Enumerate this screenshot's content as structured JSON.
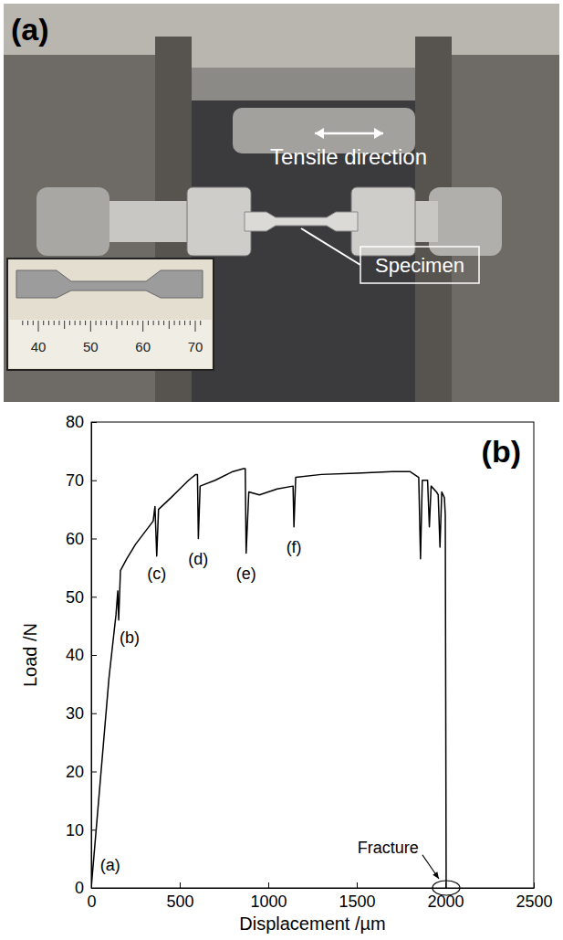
{
  "photo": {
    "title": "(a)",
    "labels": [
      "Tensile direction",
      "Specimen"
    ],
    "ruler_ticks": [
      40,
      50,
      60,
      70
    ]
  },
  "chart_data": {
    "type": "line",
    "title": "(b)",
    "x_label": "Displacement /µm",
    "y_label": "Load /N",
    "x": [
      0,
      50,
      100,
      140,
      150,
      155,
      165,
      200,
      250,
      300,
      350,
      360,
      370,
      380,
      450,
      500,
      550,
      590,
      600,
      605,
      615,
      700,
      800,
      860,
      870,
      875,
      890,
      950,
      1050,
      1140,
      1145,
      1155,
      1300,
      1500,
      1700,
      1800,
      1850,
      1860,
      1870,
      1900,
      1910,
      1920,
      1950,
      1960,
      1970,
      1980,
      1995,
      2000,
      2005
    ],
    "values": [
      0,
      18,
      36,
      47,
      51,
      46,
      54.5,
      56.5,
      59,
      61,
      63,
      65.5,
      57,
      65,
      67,
      68.5,
      70,
      71,
      71,
      60,
      69,
      70,
      71.5,
      72,
      72,
      57.5,
      68,
      67.5,
      68.5,
      69,
      62,
      70.5,
      71,
      71.2,
      71.5,
      71.5,
      70.5,
      56.5,
      70,
      70,
      62,
      69,
      68,
      67.5,
      58.5,
      68,
      67,
      64,
      0
    ],
    "color": "#000000",
    "xlim": [
      0,
      2500
    ],
    "ylim": [
      0,
      80
    ],
    "xticks": [
      0,
      500,
      1000,
      1500,
      2000,
      2500
    ],
    "yticks": [
      0,
      10,
      20,
      30,
      40,
      50,
      60,
      70,
      80
    ],
    "grid": false,
    "annotations": [
      {
        "text": "(a)",
        "x": 50,
        "y": 3
      },
      {
        "text": "(b)",
        "x": 160,
        "y": 42
      },
      {
        "text": "(c)",
        "x": 370,
        "y": 53
      },
      {
        "text": "(d)",
        "x": 605,
        "y": 55.5
      },
      {
        "text": "(e)",
        "x": 875,
        "y": 53
      },
      {
        "text": "(f)",
        "x": 1145,
        "y": 57.5
      },
      {
        "text": "Fracture",
        "x": 1850,
        "y": 6
      }
    ]
  }
}
